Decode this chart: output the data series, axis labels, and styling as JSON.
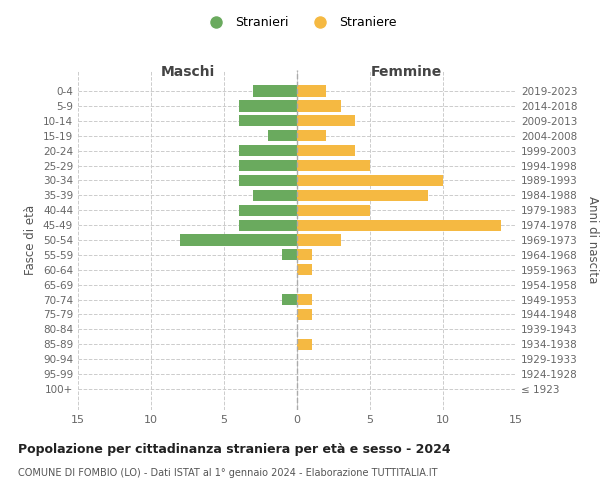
{
  "age_groups": [
    "100+",
    "95-99",
    "90-94",
    "85-89",
    "80-84",
    "75-79",
    "70-74",
    "65-69",
    "60-64",
    "55-59",
    "50-54",
    "45-49",
    "40-44",
    "35-39",
    "30-34",
    "25-29",
    "20-24",
    "15-19",
    "10-14",
    "5-9",
    "0-4"
  ],
  "birth_years": [
    "≤ 1923",
    "1924-1928",
    "1929-1933",
    "1934-1938",
    "1939-1943",
    "1944-1948",
    "1949-1953",
    "1954-1958",
    "1959-1963",
    "1964-1968",
    "1969-1973",
    "1974-1978",
    "1979-1983",
    "1984-1988",
    "1989-1993",
    "1994-1998",
    "1999-2003",
    "2004-2008",
    "2009-2013",
    "2014-2018",
    "2019-2023"
  ],
  "maschi": [
    0,
    0,
    0,
    0,
    0,
    0,
    1,
    0,
    0,
    1,
    8,
    4,
    4,
    3,
    4,
    4,
    4,
    2,
    4,
    4,
    3
  ],
  "femmine": [
    0,
    0,
    0,
    1,
    0,
    1,
    1,
    0,
    1,
    1,
    3,
    14,
    5,
    9,
    10,
    5,
    4,
    2,
    4,
    3,
    2
  ],
  "maschi_color": "#6aaa5e",
  "femmine_color": "#f5b942",
  "bg_color": "#ffffff",
  "grid_color": "#cccccc",
  "title": "Popolazione per cittadinanza straniera per età e sesso - 2024",
  "subtitle": "COMUNE DI FOMBIO (LO) - Dati ISTAT al 1° gennaio 2024 - Elaborazione TUTTITALIA.IT",
  "xlabel_left": "Maschi",
  "xlabel_right": "Femmine",
  "ylabel_left": "Fasce di età",
  "ylabel_right": "Anni di nascita",
  "legend_maschi": "Stranieri",
  "legend_femmine": "Straniere",
  "xlim": 15
}
